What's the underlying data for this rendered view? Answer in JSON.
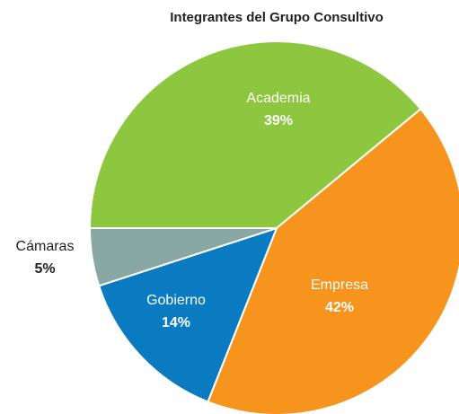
{
  "chart_data": {
    "type": "pie",
    "title": "Integrantes del Grupo Consultivo",
    "categories": [
      "Academia",
      "Empresa",
      "Gobierno",
      "Cámaras"
    ],
    "values": [
      39,
      42,
      14,
      5
    ],
    "value_labels": [
      "39%",
      "42%",
      "14%",
      "5%"
    ],
    "colors": [
      "#8dc63f",
      "#f7941d",
      "#0b7bc1",
      "#8aa8a3"
    ]
  }
}
